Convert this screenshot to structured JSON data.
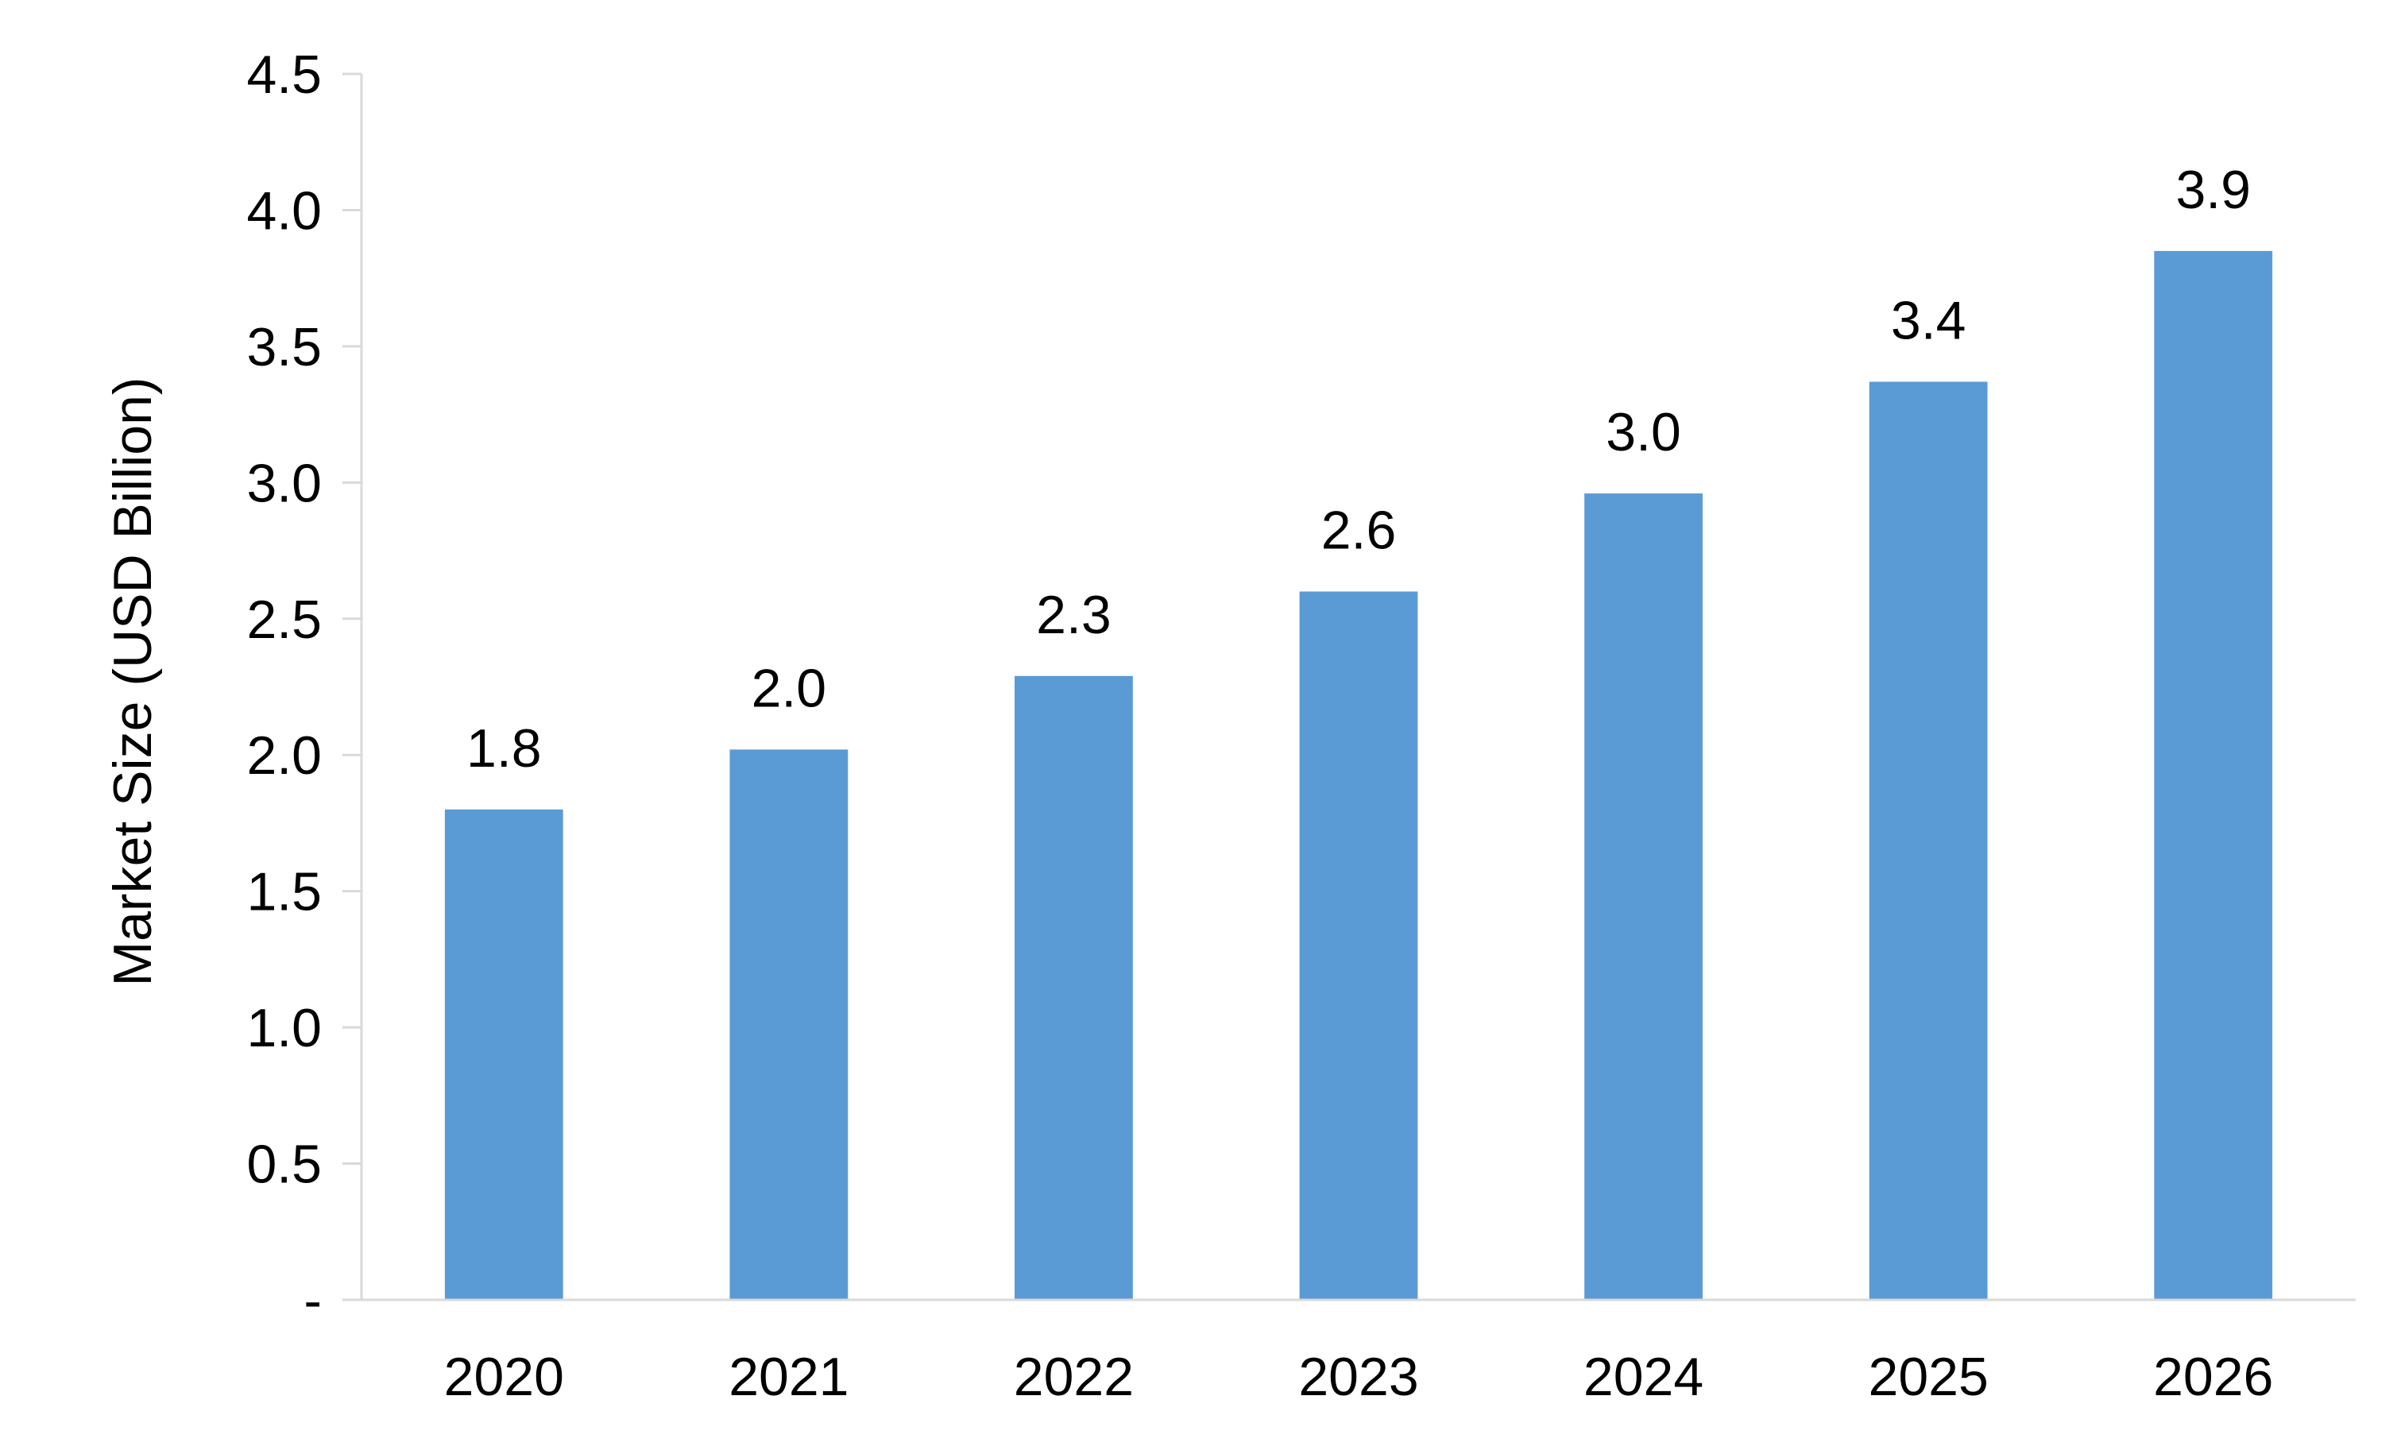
{
  "chart_data": {
    "type": "bar",
    "title": "",
    "xlabel": "",
    "ylabel": "Market Size (USD Billion)",
    "categories": [
      "2020",
      "2021",
      "2022",
      "2023",
      "2024",
      "2025",
      "2026"
    ],
    "values": [
      1.8,
      2.02,
      2.29,
      2.6,
      2.96,
      3.37,
      3.85
    ],
    "data_labels": [
      "1.8",
      "2.0",
      "2.3",
      "2.6",
      "3.0",
      "3.4",
      "3.9"
    ],
    "ylim": [
      0,
      4.5
    ],
    "y_ticks": [
      0,
      0.5,
      1.0,
      1.5,
      2.0,
      2.5,
      3.0,
      3.5,
      4.0,
      4.5
    ],
    "y_tick_labels": [
      "-",
      "0.5",
      "1.0",
      "1.5",
      "2.0",
      "2.5",
      "3.0",
      "3.5",
      "4.0",
      "4.5"
    ],
    "grid": false,
    "legend": "none",
    "colors": {
      "bar": "#5b9bd5",
      "axis": "#d9d9d9",
      "text": "#000000"
    }
  }
}
